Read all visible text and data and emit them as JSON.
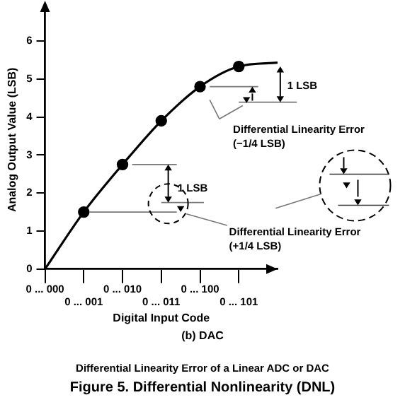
{
  "chart_data": {
    "type": "line",
    "title": "Figure 5.  Differential Nonlinearity (DNL)",
    "subtitle": "Differential Linearity Error of a Linear ADC or DAC",
    "xlabel": "Digital Input Code",
    "ylabel": "Analog Output Value (LSB)",
    "annotations": [
      "(b) DAC",
      "1 LSB",
      "Differential Linearity Error (−1/4 LSB)",
      "1 LSB",
      "Differential Linearity Error (+1/4 LSB)"
    ],
    "categories": [
      "0 ... 000",
      "0 ... 001",
      "0 ... 010",
      "0 ... 011",
      "0 ... 100",
      "0 ... 101",
      null
    ],
    "ylim": [
      0,
      6.8
    ],
    "yticks": [
      0,
      1,
      2,
      3,
      4,
      5,
      6
    ],
    "grid": false,
    "legend": false,
    "series": [
      {
        "type": "line",
        "color": "#000000",
        "marker": "none",
        "values": [
          0,
          1.5,
          2.75,
          3.9,
          4.8,
          5.33,
          5.43
        ]
      },
      {
        "type": "scatter",
        "color": "#000000",
        "marker": "circle",
        "values": [
          null,
          1.5,
          2.75,
          3.9,
          4.8,
          5.33,
          null
        ]
      }
    ]
  }
}
